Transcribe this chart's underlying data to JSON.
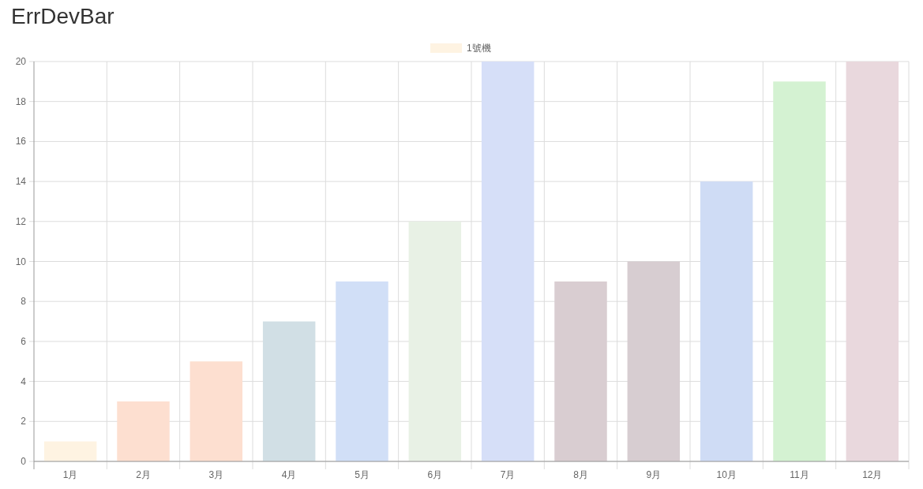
{
  "chart_data": {
    "type": "bar",
    "title": "ErrDevBar",
    "categories": [
      "1月",
      "2月",
      "3月",
      "4月",
      "5月",
      "6月",
      "7月",
      "8月",
      "9月",
      "10月",
      "11月",
      "12月"
    ],
    "series": [
      {
        "name": "1號機",
        "values": [
          1,
          3,
          5,
          7,
          9,
          12,
          20,
          9,
          10,
          14,
          19,
          20
        ],
        "colors": [
          "#fef3e2",
          "#fddfd0",
          "#fddfd0",
          "#d1dfe5",
          "#d1dff7",
          "#e8f1e5",
          "#d6dff8",
          "#d9cdd1",
          "#d7cdd1",
          "#cfdcf5",
          "#d4f2d2",
          "#e9d8dd"
        ]
      }
    ],
    "ylim": [
      0,
      20
    ],
    "yticks": [
      0,
      2,
      4,
      6,
      8,
      10,
      12,
      14,
      16,
      18,
      20
    ],
    "grid": true,
    "legend": "top"
  }
}
